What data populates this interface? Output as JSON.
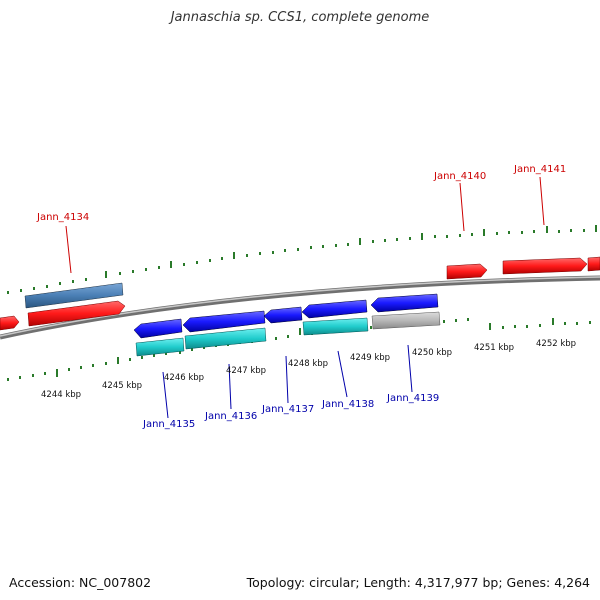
{
  "title": "Jannaschia sp. CCS1, complete genome",
  "footer": {
    "accession": "Accession: NC_007802",
    "topology": "Topology: circular; Length: 4,317,977 bp; Genes: 4,264"
  },
  "scale_labels": [
    "4244 kbp",
    "4245 kbp",
    "4246 kbp",
    "4247 kbp",
    "4248 kbp",
    "4249 kbp",
    "4250 kbp",
    "4251 kbp",
    "4252 kbp"
  ],
  "gene_labels_top": [
    "Jann_4134",
    "Jann_4140",
    "Jann_4141"
  ],
  "gene_labels_bottom": [
    "Jann_4135",
    "Jann_4136",
    "Jann_4137",
    "Jann_4138",
    "Jann_4139"
  ],
  "colors": {
    "forward_gene": "#ff1a1a",
    "reverse_gene": "#1a1aff",
    "forward_feature": "#4a7fb5",
    "reverse_feature": "#20cccc",
    "other_feature": "#b8b8b8",
    "backbone": "#888888",
    "tick": "#2a7a2a",
    "label_top": "#cc0000",
    "label_bottom": "#0000aa"
  }
}
